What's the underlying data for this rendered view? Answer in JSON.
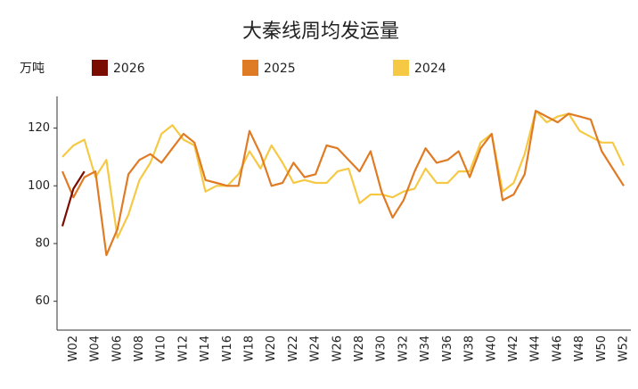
{
  "chart_data": {
    "type": "line",
    "title": "大秦线周均发运量",
    "y_label": "万吨",
    "categories": [
      null,
      "W02",
      null,
      "W04",
      null,
      "W06",
      null,
      "W08",
      null,
      "W10",
      null,
      "W12",
      null,
      "W14",
      null,
      "W16",
      null,
      "W18",
      null,
      "W20",
      null,
      "W22",
      null,
      "W24",
      null,
      "W26",
      null,
      "W28",
      null,
      "W30",
      null,
      "W32",
      null,
      "W34",
      null,
      "W36",
      null,
      "W38",
      null,
      "W40",
      null,
      "W42",
      null,
      "W44",
      null,
      "W46",
      null,
      "W48",
      null,
      "W50",
      null,
      "W52"
    ],
    "series": [
      {
        "name": "2026",
        "color": "#7a0c02",
        "values": [
          86,
          99,
          105,
          null,
          null,
          null,
          null,
          null,
          null,
          null,
          null,
          null,
          null,
          null,
          null,
          null,
          null,
          null,
          null,
          null,
          null,
          null,
          null,
          null,
          null,
          null,
          null,
          null,
          null,
          null,
          null,
          null,
          null,
          null,
          null,
          null,
          null,
          null,
          null,
          null,
          null,
          null,
          null,
          null,
          null,
          null,
          null,
          null,
          null,
          null,
          null,
          null
        ]
      },
      {
        "name": "2025",
        "color": "#e07b25",
        "values": [
          105,
          96,
          103,
          105,
          76,
          85,
          104,
          109,
          111,
          108,
          113,
          118,
          115,
          102,
          101,
          100,
          100,
          119,
          111,
          100,
          101,
          108,
          103,
          104,
          114,
          113,
          109,
          105,
          112,
          98,
          89,
          95,
          105,
          113,
          108,
          109,
          112,
          103,
          113,
          118,
          95,
          97,
          104,
          126,
          124,
          122,
          125,
          124,
          123,
          112,
          106,
          100
        ]
      },
      {
        "name": "2024",
        "color": "#f6c945",
        "values": [
          110,
          114,
          116,
          103,
          109,
          82,
          90,
          102,
          108,
          118,
          121,
          116,
          114,
          98,
          100,
          100,
          104,
          112,
          106,
          114,
          108,
          101,
          102,
          101,
          101,
          105,
          106,
          94,
          97,
          97,
          96,
          98,
          99,
          106,
          101,
          101,
          105,
          105,
          115,
          118,
          98,
          101,
          111,
          126,
          122,
          124,
          125,
          119,
          117,
          115,
          115,
          107
        ]
      }
    ],
    "ylim": [
      50,
      131
    ],
    "yticks": [
      60,
      80,
      100,
      120
    ],
    "grid": false
  }
}
